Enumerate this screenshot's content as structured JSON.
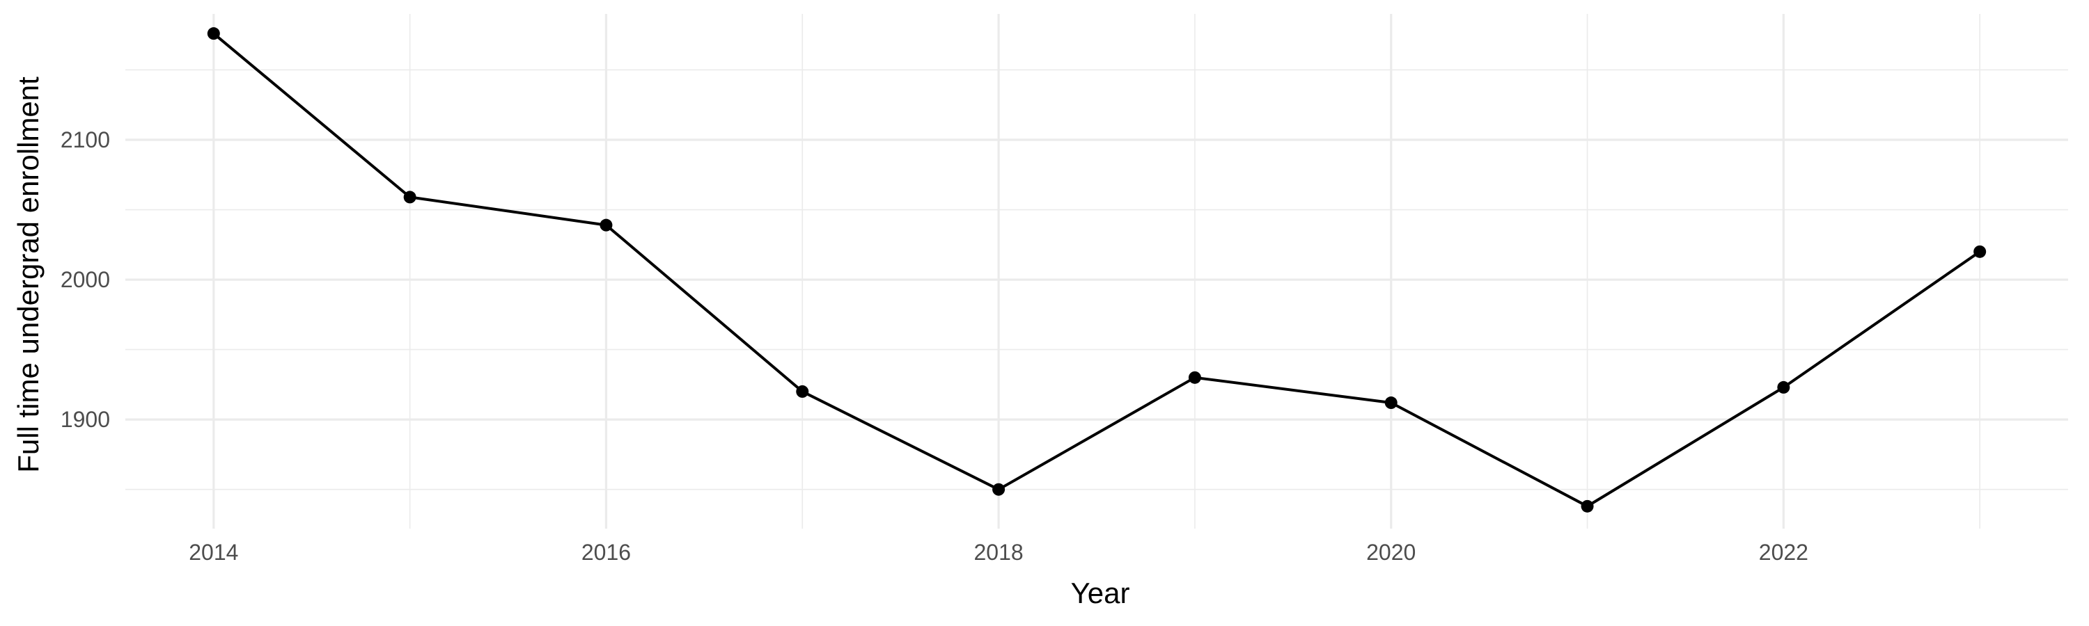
{
  "chart_data": {
    "type": "line",
    "title": "",
    "xlabel": "Year",
    "ylabel": "Full time undergrad enrollment",
    "xlim": [
      2013.55,
      2023.45
    ],
    "ylim": [
      1822,
      2190
    ],
    "x_ticks": [
      2014,
      2016,
      2018,
      2020,
      2022
    ],
    "x_tick_labels": [
      "2014",
      "2016",
      "2018",
      "2020",
      "2022"
    ],
    "x_minor_ticks": [
      2015,
      2017,
      2019,
      2021,
      2023
    ],
    "y_ticks": [
      1900,
      2000,
      2100
    ],
    "y_tick_labels": [
      "1900",
      "2000",
      "2100"
    ],
    "y_minor_ticks": [
      1850,
      1950,
      2050,
      2150
    ],
    "grid": true,
    "legend": "none",
    "series": [
      {
        "x": [
          2014,
          2015,
          2016,
          2017,
          2018,
          2019,
          2020,
          2021,
          2022,
          2023
        ],
        "values": [
          2176,
          2059,
          2039,
          1920,
          1850,
          1930,
          1912,
          1838,
          1923,
          2020
        ],
        "color": "#000000"
      }
    ]
  }
}
